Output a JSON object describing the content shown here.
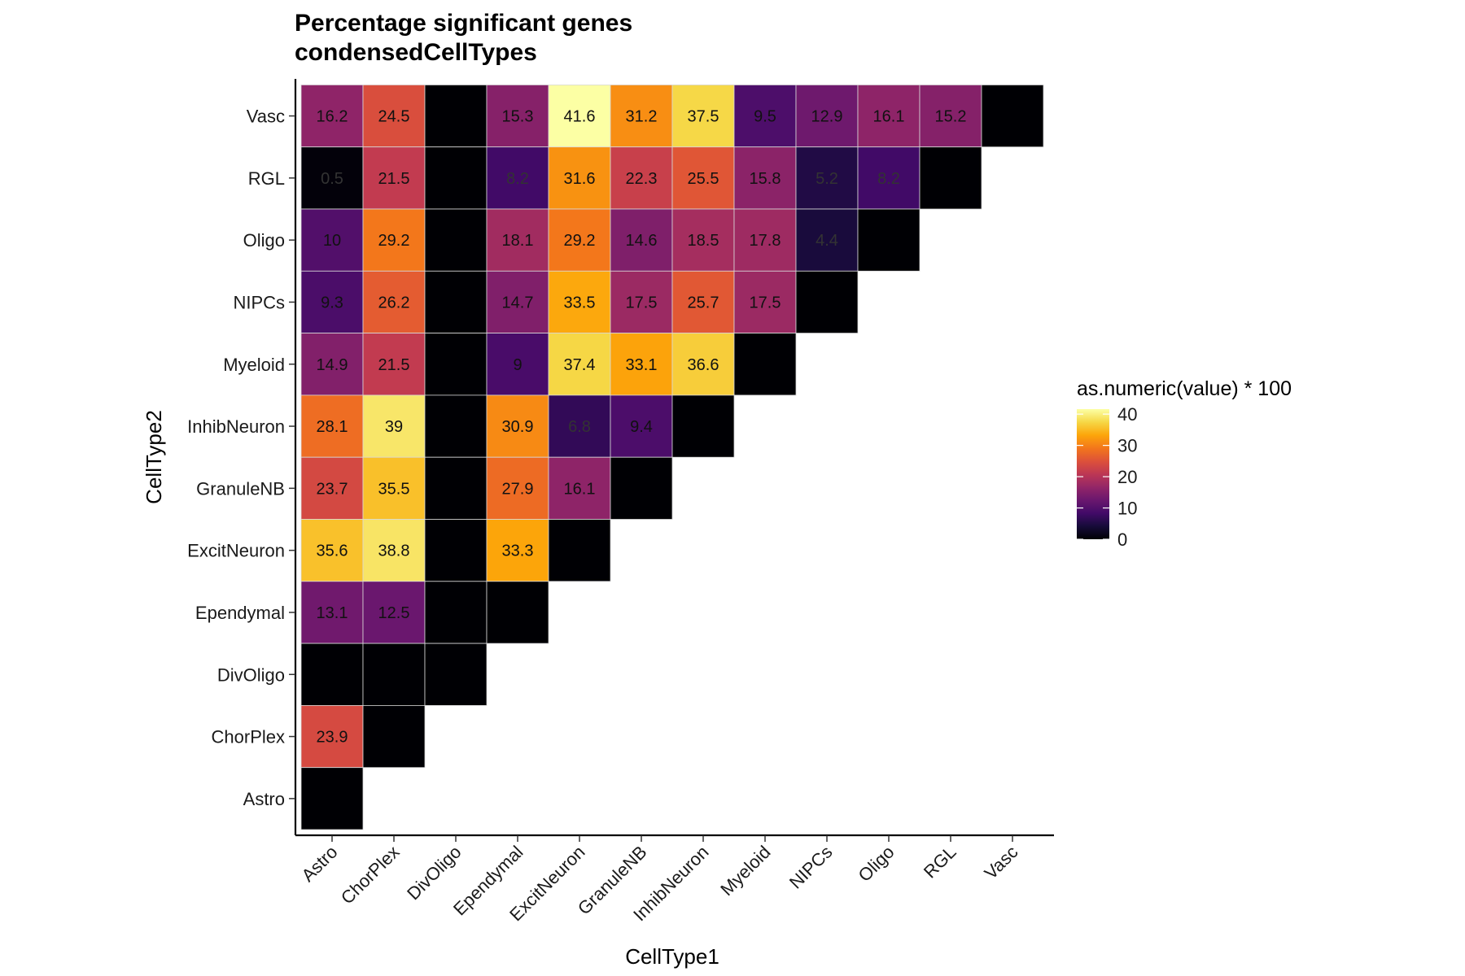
{
  "chart_data": {
    "type": "heatmap",
    "title": [
      "Percentage significant genes",
      "condensedCellTypes"
    ],
    "xlabel": "CellType1",
    "ylabel": "CellType2",
    "x_categories": [
      "Astro",
      "ChorPlex",
      "DivOligo",
      "Ependymal",
      "ExcitNeuron",
      "GranuleNB",
      "InhibNeuron",
      "Myeloid",
      "NIPCs",
      "Oligo",
      "RGL",
      "Vasc"
    ],
    "y_categories": [
      "Astro",
      "ChorPlex",
      "DivOligo",
      "Ependymal",
      "ExcitNeuron",
      "GranuleNB",
      "InhibNeuron",
      "Myeloid",
      "NIPCs",
      "Oligo",
      "RGL",
      "Vasc"
    ],
    "cells": [
      {
        "x": "Astro",
        "y": "Vasc",
        "value": 16.2
      },
      {
        "x": "ChorPlex",
        "y": "Vasc",
        "value": 24.5
      },
      {
        "x": "DivOligo",
        "y": "Vasc",
        "value": 0
      },
      {
        "x": "Ependymal",
        "y": "Vasc",
        "value": 15.3
      },
      {
        "x": "ExcitNeuron",
        "y": "Vasc",
        "value": 41.6
      },
      {
        "x": "GranuleNB",
        "y": "Vasc",
        "value": 31.2
      },
      {
        "x": "InhibNeuron",
        "y": "Vasc",
        "value": 37.5
      },
      {
        "x": "Myeloid",
        "y": "Vasc",
        "value": 9.5
      },
      {
        "x": "NIPCs",
        "y": "Vasc",
        "value": 12.9
      },
      {
        "x": "Oligo",
        "y": "Vasc",
        "value": 16.1
      },
      {
        "x": "RGL",
        "y": "Vasc",
        "value": 15.2
      },
      {
        "x": "Vasc",
        "y": "Vasc",
        "value": 0
      },
      {
        "x": "Astro",
        "y": "RGL",
        "value": 0.5
      },
      {
        "x": "ChorPlex",
        "y": "RGL",
        "value": 21.5
      },
      {
        "x": "DivOligo",
        "y": "RGL",
        "value": 0
      },
      {
        "x": "Ependymal",
        "y": "RGL",
        "value": 8.2
      },
      {
        "x": "ExcitNeuron",
        "y": "RGL",
        "value": 31.6
      },
      {
        "x": "GranuleNB",
        "y": "RGL",
        "value": 22.3
      },
      {
        "x": "InhibNeuron",
        "y": "RGL",
        "value": 25.5
      },
      {
        "x": "Myeloid",
        "y": "RGL",
        "value": 15.8
      },
      {
        "x": "NIPCs",
        "y": "RGL",
        "value": 5.2
      },
      {
        "x": "Oligo",
        "y": "RGL",
        "value": 8.2
      },
      {
        "x": "RGL",
        "y": "RGL",
        "value": 0
      },
      {
        "x": "Astro",
        "y": "Oligo",
        "value": 10
      },
      {
        "x": "ChorPlex",
        "y": "Oligo",
        "value": 29.2
      },
      {
        "x": "DivOligo",
        "y": "Oligo",
        "value": 0
      },
      {
        "x": "Ependymal",
        "y": "Oligo",
        "value": 18.1
      },
      {
        "x": "ExcitNeuron",
        "y": "Oligo",
        "value": 29.2
      },
      {
        "x": "GranuleNB",
        "y": "Oligo",
        "value": 14.6
      },
      {
        "x": "InhibNeuron",
        "y": "Oligo",
        "value": 18.5
      },
      {
        "x": "Myeloid",
        "y": "Oligo",
        "value": 17.8
      },
      {
        "x": "NIPCs",
        "y": "Oligo",
        "value": 4.4
      },
      {
        "x": "Oligo",
        "y": "Oligo",
        "value": 0
      },
      {
        "x": "Astro",
        "y": "NIPCs",
        "value": 9.3
      },
      {
        "x": "ChorPlex",
        "y": "NIPCs",
        "value": 26.2
      },
      {
        "x": "DivOligo",
        "y": "NIPCs",
        "value": 0
      },
      {
        "x": "Ependymal",
        "y": "NIPCs",
        "value": 14.7
      },
      {
        "x": "ExcitNeuron",
        "y": "NIPCs",
        "value": 33.5
      },
      {
        "x": "GranuleNB",
        "y": "NIPCs",
        "value": 17.5
      },
      {
        "x": "InhibNeuron",
        "y": "NIPCs",
        "value": 25.7
      },
      {
        "x": "Myeloid",
        "y": "NIPCs",
        "value": 17.5
      },
      {
        "x": "NIPCs",
        "y": "NIPCs",
        "value": 0
      },
      {
        "x": "Astro",
        "y": "Myeloid",
        "value": 14.9
      },
      {
        "x": "ChorPlex",
        "y": "Myeloid",
        "value": 21.5
      },
      {
        "x": "DivOligo",
        "y": "Myeloid",
        "value": 0
      },
      {
        "x": "Ependymal",
        "y": "Myeloid",
        "value": 9
      },
      {
        "x": "ExcitNeuron",
        "y": "Myeloid",
        "value": 37.4
      },
      {
        "x": "GranuleNB",
        "y": "Myeloid",
        "value": 33.1
      },
      {
        "x": "InhibNeuron",
        "y": "Myeloid",
        "value": 36.6
      },
      {
        "x": "Myeloid",
        "y": "Myeloid",
        "value": 0
      },
      {
        "x": "Astro",
        "y": "InhibNeuron",
        "value": 28.1
      },
      {
        "x": "ChorPlex",
        "y": "InhibNeuron",
        "value": 39
      },
      {
        "x": "DivOligo",
        "y": "InhibNeuron",
        "value": 0
      },
      {
        "x": "Ependymal",
        "y": "InhibNeuron",
        "value": 30.9
      },
      {
        "x": "ExcitNeuron",
        "y": "InhibNeuron",
        "value": 6.8
      },
      {
        "x": "GranuleNB",
        "y": "InhibNeuron",
        "value": 9.4
      },
      {
        "x": "InhibNeuron",
        "y": "InhibNeuron",
        "value": 0
      },
      {
        "x": "Astro",
        "y": "GranuleNB",
        "value": 23.7
      },
      {
        "x": "ChorPlex",
        "y": "GranuleNB",
        "value": 35.5
      },
      {
        "x": "DivOligo",
        "y": "GranuleNB",
        "value": 0
      },
      {
        "x": "Ependymal",
        "y": "GranuleNB",
        "value": 27.9
      },
      {
        "x": "ExcitNeuron",
        "y": "GranuleNB",
        "value": 16.1
      },
      {
        "x": "GranuleNB",
        "y": "GranuleNB",
        "value": 0
      },
      {
        "x": "Astro",
        "y": "ExcitNeuron",
        "value": 35.6
      },
      {
        "x": "ChorPlex",
        "y": "ExcitNeuron",
        "value": 38.8
      },
      {
        "x": "DivOligo",
        "y": "ExcitNeuron",
        "value": 0
      },
      {
        "x": "Ependymal",
        "y": "ExcitNeuron",
        "value": 33.3
      },
      {
        "x": "ExcitNeuron",
        "y": "ExcitNeuron",
        "value": 0
      },
      {
        "x": "Astro",
        "y": "Ependymal",
        "value": 13.1
      },
      {
        "x": "ChorPlex",
        "y": "Ependymal",
        "value": 12.5
      },
      {
        "x": "DivOligo",
        "y": "Ependymal",
        "value": 0
      },
      {
        "x": "Ependymal",
        "y": "Ependymal",
        "value": 0
      },
      {
        "x": "Astro",
        "y": "DivOligo",
        "value": 0
      },
      {
        "x": "ChorPlex",
        "y": "DivOligo",
        "value": 0
      },
      {
        "x": "DivOligo",
        "y": "DivOligo",
        "value": 0
      },
      {
        "x": "Astro",
        "y": "ChorPlex",
        "value": 23.9
      },
      {
        "x": "ChorPlex",
        "y": "ChorPlex",
        "value": 0
      },
      {
        "x": "Astro",
        "y": "Astro",
        "value": 0
      }
    ],
    "colorscale": "inferno",
    "value_range": [
      0,
      41.6
    ],
    "legend": {
      "title": "as.numeric(value) * 100",
      "ticks": [
        0,
        10,
        20,
        30,
        40
      ],
      "position": "right"
    },
    "grid": false
  }
}
